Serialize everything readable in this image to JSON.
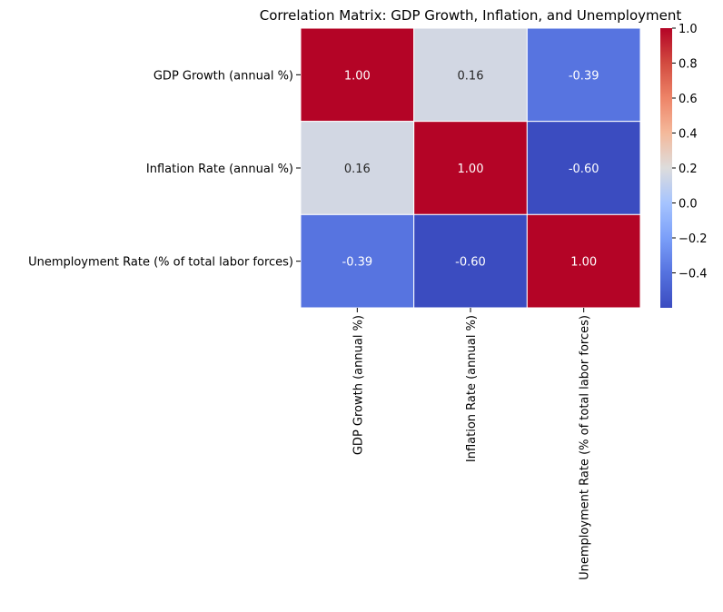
{
  "chart_data": {
    "type": "heatmap",
    "title": "Correlation Matrix: GDP Growth, Inflation, and Unemployment",
    "xlabel": "",
    "ylabel": "",
    "row_labels": [
      "GDP Growth (annual %)",
      "Inflation Rate (annual %)",
      "Unemployment Rate (% of total labor forces)"
    ],
    "col_labels": [
      "GDP Growth (annual %)",
      "Inflation Rate (annual %)",
      "Unemployment Rate (% of total labor forces)"
    ],
    "values": [
      [
        1.0,
        0.16,
        -0.39
      ],
      [
        0.16,
        1.0,
        -0.6
      ],
      [
        -0.39,
        -0.6,
        1.0
      ]
    ],
    "value_labels": [
      [
        "1.00",
        "0.16",
        "-0.39"
      ],
      [
        "0.16",
        "1.00",
        "-0.60"
      ],
      [
        "-0.39",
        "-0.60",
        "1.00"
      ]
    ],
    "colormap": "coolwarm",
    "colorbar": {
      "vmin": -0.6,
      "vmax": 1.0,
      "ticks": [
        1.0,
        0.8,
        0.6,
        0.4,
        0.2,
        0.0,
        -0.2,
        -0.4
      ],
      "tick_labels": [
        "1.0",
        "0.8",
        "0.6",
        "0.4",
        "0.2",
        "0.0",
        "−0.2",
        "−0.4"
      ]
    },
    "cell_border_color": "#ffffff",
    "annotation_text_color": "#ffffff",
    "annotation_text_color_mid": "#262626"
  }
}
